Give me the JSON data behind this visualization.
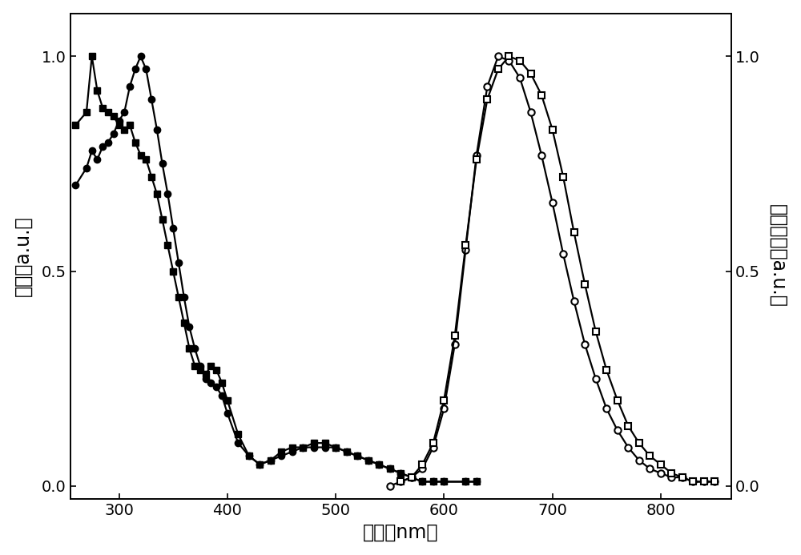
{
  "xlabel": "波长（nm）",
  "ylabel_left": "吸收（a.u.）",
  "ylabel_right": "光致发光（a.u.）",
  "xlim": [
    255,
    865
  ],
  "ylim_left": [
    -0.03,
    1.1
  ],
  "ylim_right": [
    -0.03,
    1.1
  ],
  "xticks": [
    300,
    400,
    500,
    600,
    700,
    800
  ],
  "yticks_left": [
    0.0,
    0.5,
    1.0
  ],
  "yticks_right": [
    0.0,
    0.5,
    1.0
  ],
  "background_color": "#ffffff",
  "line_color": "#000000",
  "abs_square": {
    "x": [
      260,
      270,
      275,
      280,
      285,
      290,
      295,
      300,
      305,
      310,
      315,
      320,
      325,
      330,
      335,
      340,
      345,
      350,
      355,
      360,
      365,
      370,
      375,
      380,
      385,
      390,
      395,
      400,
      410,
      420,
      430,
      440,
      450,
      460,
      470,
      480,
      490,
      500,
      510,
      520,
      530,
      540,
      550,
      560,
      570,
      580,
      590,
      600,
      620,
      630
    ],
    "y": [
      0.84,
      0.87,
      1.0,
      0.92,
      0.88,
      0.87,
      0.86,
      0.84,
      0.83,
      0.84,
      0.8,
      0.77,
      0.76,
      0.72,
      0.68,
      0.62,
      0.56,
      0.5,
      0.44,
      0.38,
      0.32,
      0.28,
      0.27,
      0.26,
      0.28,
      0.27,
      0.24,
      0.2,
      0.12,
      0.07,
      0.05,
      0.06,
      0.08,
      0.09,
      0.09,
      0.1,
      0.1,
      0.09,
      0.08,
      0.07,
      0.06,
      0.05,
      0.04,
      0.03,
      0.02,
      0.01,
      0.01,
      0.01,
      0.01,
      0.01
    ]
  },
  "abs_circle": {
    "x": [
      260,
      270,
      275,
      280,
      285,
      290,
      295,
      300,
      305,
      310,
      315,
      320,
      325,
      330,
      335,
      340,
      345,
      350,
      355,
      360,
      365,
      370,
      375,
      380,
      385,
      390,
      395,
      400,
      410,
      420,
      430,
      440,
      450,
      460,
      470,
      480,
      490,
      500,
      510,
      520,
      530,
      540,
      550,
      560,
      570,
      580,
      590,
      600,
      620,
      630
    ],
    "y": [
      0.7,
      0.74,
      0.78,
      0.76,
      0.79,
      0.8,
      0.82,
      0.85,
      0.87,
      0.93,
      0.97,
      1.0,
      0.97,
      0.9,
      0.83,
      0.75,
      0.68,
      0.6,
      0.52,
      0.44,
      0.37,
      0.32,
      0.28,
      0.25,
      0.24,
      0.23,
      0.21,
      0.17,
      0.1,
      0.07,
      0.05,
      0.06,
      0.07,
      0.08,
      0.09,
      0.09,
      0.09,
      0.09,
      0.08,
      0.07,
      0.06,
      0.05,
      0.04,
      0.03,
      0.02,
      0.01,
      0.01,
      0.01,
      0.01,
      0.01
    ]
  },
  "em_circle": {
    "x": [
      550,
      560,
      570,
      580,
      590,
      600,
      610,
      620,
      630,
      640,
      650,
      660,
      670,
      680,
      690,
      700,
      710,
      720,
      730,
      740,
      750,
      760,
      770,
      780,
      790,
      800,
      810,
      820,
      830,
      840,
      850
    ],
    "y": [
      0.0,
      0.01,
      0.02,
      0.04,
      0.09,
      0.18,
      0.33,
      0.55,
      0.77,
      0.93,
      1.0,
      0.99,
      0.95,
      0.87,
      0.77,
      0.66,
      0.54,
      0.43,
      0.33,
      0.25,
      0.18,
      0.13,
      0.09,
      0.06,
      0.04,
      0.03,
      0.02,
      0.02,
      0.01,
      0.01,
      0.01
    ]
  },
  "em_square": {
    "x": [
      560,
      570,
      580,
      590,
      600,
      610,
      620,
      630,
      640,
      650,
      660,
      670,
      680,
      690,
      700,
      710,
      720,
      730,
      740,
      750,
      760,
      770,
      780,
      790,
      800,
      810,
      820,
      830,
      840,
      850
    ],
    "y": [
      0.01,
      0.02,
      0.05,
      0.1,
      0.2,
      0.35,
      0.56,
      0.76,
      0.9,
      0.97,
      1.0,
      0.99,
      0.96,
      0.91,
      0.83,
      0.72,
      0.59,
      0.47,
      0.36,
      0.27,
      0.2,
      0.14,
      0.1,
      0.07,
      0.05,
      0.03,
      0.02,
      0.01,
      0.01,
      0.01
    ]
  },
  "marker_size": 6,
  "linewidth": 1.6,
  "font_size_label": 17,
  "font_size_tick": 14
}
